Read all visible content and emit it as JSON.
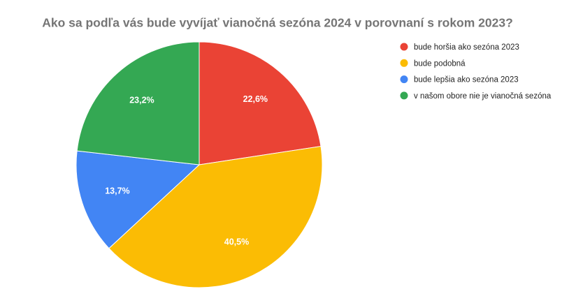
{
  "chart_data": {
    "type": "pie",
    "title": "Ako sa podľa vás bude vyvíjať vianočná sezóna 2024 v porovnaní s rokom 2023?",
    "categories": [
      "bude horšia ako sezóna 2023",
      "bude podobná",
      "bude lepšia ako sezóna 2023",
      "v našom obore nie je vianočná sezóna"
    ],
    "values": [
      22.6,
      40.5,
      13.7,
      23.2
    ],
    "value_labels": [
      "22,6%",
      "40,5%",
      "13,7%",
      "23,2%"
    ],
    "colors": [
      "#ea4335",
      "#fbbc04",
      "#4285f4",
      "#34a853"
    ],
    "legend": "right"
  }
}
